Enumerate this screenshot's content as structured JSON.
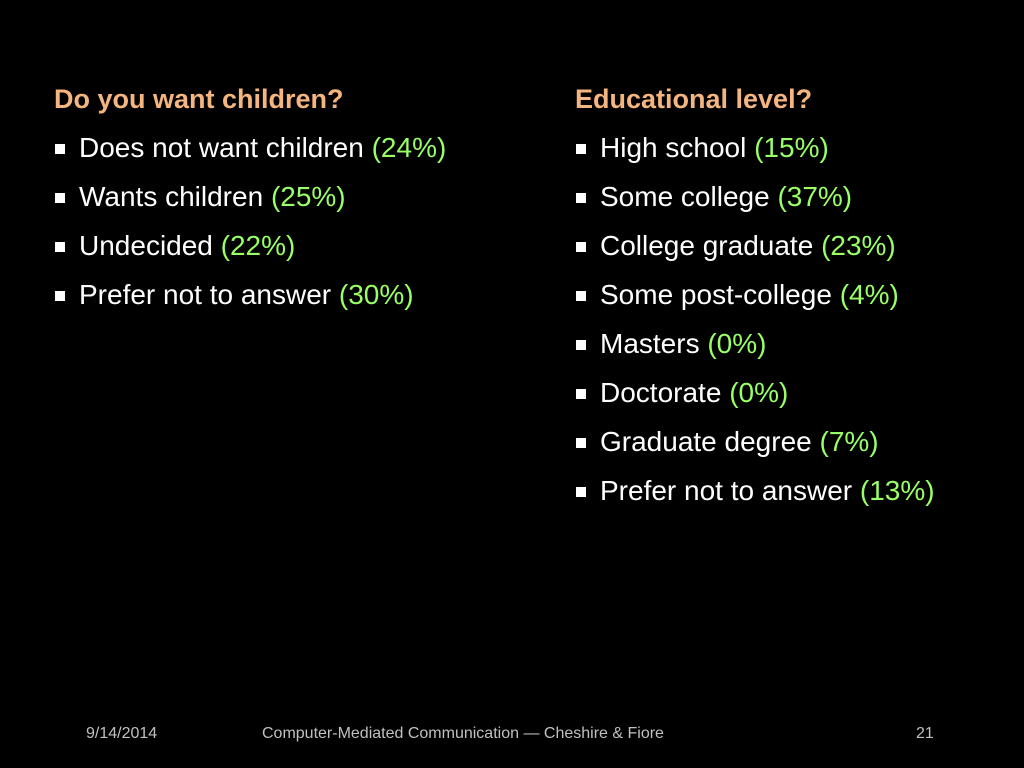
{
  "colors": {
    "background": "#000000",
    "heading": "#f5b57f",
    "text": "#ffffff",
    "percent": "#99ff66",
    "footer": "#c0c0c0"
  },
  "left": {
    "heading": "Do you want children?",
    "items": [
      {
        "label": "Does not want children",
        "percent": "(24%)"
      },
      {
        "label": "Wants children",
        "percent": "(25%)"
      },
      {
        "label": "Undecided",
        "percent": "(22%)"
      },
      {
        "label": "Prefer not to answer",
        "percent": "(30%)"
      }
    ]
  },
  "right": {
    "heading": "Educational level?",
    "items": [
      {
        "label": "High school",
        "percent": "(15%)"
      },
      {
        "label": "Some college",
        "percent": "(37%)"
      },
      {
        "label": "College graduate",
        "percent": "(23%)"
      },
      {
        "label": "Some post-college",
        "percent": "(4%)"
      },
      {
        "label": "Masters",
        "percent": "(0%)"
      },
      {
        "label": "Doctorate",
        "percent": "(0%)"
      },
      {
        "label": "Graduate degree",
        "percent": "(7%)"
      },
      {
        "label": "Prefer not to answer",
        "percent": "(13%)"
      }
    ]
  },
  "footer": {
    "date": "9/14/2014",
    "center": "Computer-Mediated Communication — Cheshire & Fiore",
    "page": "21"
  }
}
